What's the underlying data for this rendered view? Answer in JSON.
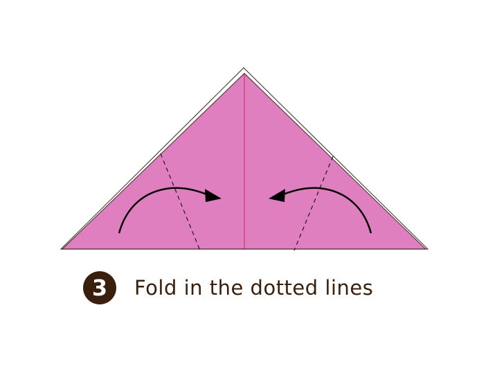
{
  "colors": {
    "paper_fill": "#e07fbf",
    "paper_outline": "#3a2a20",
    "center_crease": "#d0205a",
    "dotted_line": "#1a1a1a",
    "arrow": "#000000",
    "badge": "#3a200c",
    "text": "#3a200c"
  },
  "icons": {
    "left_arrow": "curved-arrow-right-icon",
    "right_arrow": "curved-arrow-left-icon"
  },
  "step": {
    "number": "3",
    "instruction": "Fold in the dotted lines"
  }
}
